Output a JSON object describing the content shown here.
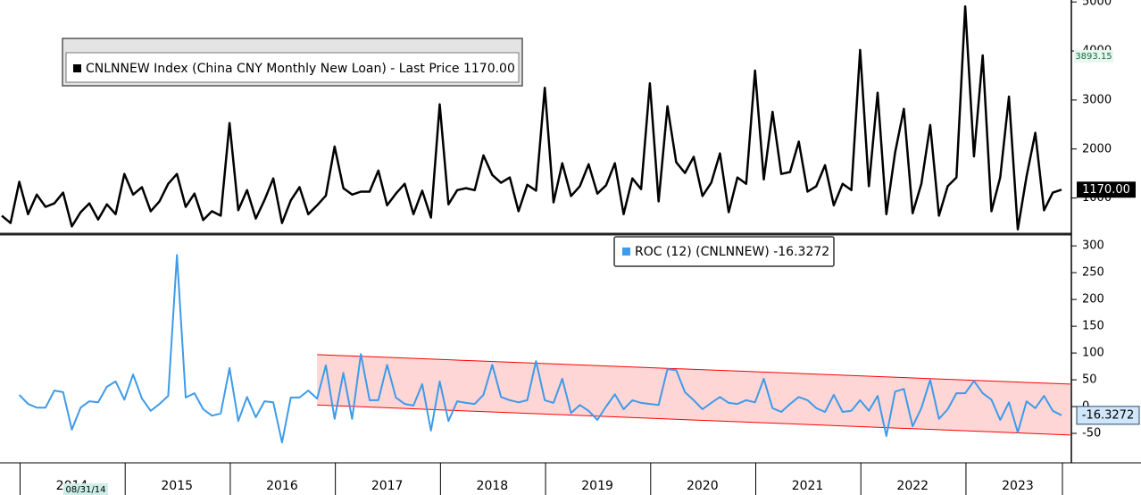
{
  "chart_data": [
    {
      "type": "line",
      "series": [
        {
          "name": "CNLNNEW Index (China CNY Monthly New Loan) - Last Price 1170.00",
          "color": "#000000",
          "values": [
            640,
            490,
            1330,
            670,
            1070,
            820,
            890,
            1110,
            420,
            710,
            890,
            560,
            870,
            670,
            1490,
            1070,
            1220,
            730,
            930,
            1290,
            1490,
            820,
            1090,
            550,
            730,
            640,
            2530,
            750,
            1160,
            580,
            960,
            1400,
            490,
            950,
            1220,
            670,
            850,
            1050,
            2050,
            1200,
            1070,
            1130,
            1130,
            1560,
            850,
            1090,
            1290,
            670,
            1150,
            600,
            2910,
            870,
            1160,
            1200,
            1160,
            1870,
            1470,
            1310,
            1420,
            730,
            1270,
            1150,
            3250,
            910,
            1710,
            1040,
            1240,
            1690,
            1090,
            1260,
            1710,
            670,
            1400,
            1180,
            3340,
            930,
            2870,
            1730,
            1510,
            1840,
            1040,
            1310,
            1910,
            710,
            1420,
            1290,
            3600,
            1380,
            2760,
            1490,
            1530,
            2150,
            1130,
            1240,
            1670,
            850,
            1290,
            1160,
            4020,
            1240,
            3150,
            670,
            1930,
            2820,
            690,
            1290,
            2490,
            640,
            1240,
            1420,
            4910,
            1850,
            3910,
            730,
            1420,
            3070,
            360,
            1440,
            2330,
            750,
            1110,
            1170
          ]
        }
      ],
      "last_label": "1170.00",
      "annotation": {
        "value": 3893.15,
        "label": "3893.15"
      },
      "ylim": [
        300,
        5040
      ],
      "yticks": [
        1000,
        2000,
        3000,
        4000,
        5000
      ]
    },
    {
      "type": "line",
      "categories": [
        null,
        null,
        null,
        null,
        null,
        null,
        null,
        null,
        "2014",
        null,
        null,
        null,
        null,
        null,
        null,
        null,
        null,
        null,
        null,
        null,
        "2015",
        null,
        null,
        null,
        null,
        null,
        null,
        null,
        null,
        null,
        null,
        null,
        "2016",
        null,
        null,
        null,
        null,
        null,
        null,
        null,
        null,
        null,
        null,
        null,
        "2017",
        null,
        null,
        null,
        null,
        null,
        null,
        null,
        null,
        null,
        null,
        null,
        "2018",
        null,
        null,
        null,
        null,
        null,
        null,
        null,
        null,
        null,
        null,
        null,
        "2019",
        null,
        null,
        null,
        null,
        null,
        null,
        null,
        null,
        null,
        null,
        null,
        "2020",
        null,
        null,
        null,
        null,
        null,
        null,
        null,
        null,
        null,
        null,
        null,
        "2021",
        null,
        null,
        null,
        null,
        null,
        null,
        null,
        null,
        null,
        null,
        null,
        "2022",
        null,
        null,
        null,
        null,
        null,
        null,
        null,
        null,
        null,
        null,
        null,
        "2023",
        null,
        null,
        null,
        null,
        null
      ],
      "series": [
        {
          "name": "ROC (12) (CNLNNEW) -16.3272",
          "color": "#3d9be9",
          "values": [
            null,
            null,
            22,
            5,
            -2,
            -2,
            30,
            27,
            -43,
            -2,
            10,
            8,
            37,
            47,
            13,
            60,
            15,
            -8,
            5,
            20,
            283,
            17,
            25,
            -5,
            -17,
            -13,
            72,
            -27,
            18,
            -20,
            10,
            8,
            -67,
            17,
            17,
            30,
            15,
            77,
            -23,
            63,
            -23,
            98,
            12,
            12,
            78,
            17,
            5,
            2,
            42,
            -45,
            47,
            -27,
            10,
            7,
            5,
            22,
            78,
            18,
            12,
            8,
            12,
            85,
            12,
            7,
            52,
            -12,
            3,
            -8,
            -25,
            0,
            23,
            -5,
            12,
            7,
            5,
            3,
            70,
            68,
            27,
            12,
            -5,
            7,
            18,
            7,
            5,
            12,
            8,
            52,
            -3,
            -10,
            5,
            18,
            12,
            -3,
            -10,
            22,
            -10,
            -8,
            12,
            -8,
            20,
            -55,
            28,
            33,
            -37,
            -3,
            50,
            -23,
            -5,
            25,
            25,
            48,
            25,
            13,
            -25,
            8,
            -48,
            10,
            -3,
            20,
            -8,
            -16.3272
          ]
        }
      ],
      "last_label": "-16.3272",
      "annotations": [
        "08/31/14"
      ],
      "channel": {
        "start": 36,
        "end": 122,
        "upper": [
          97,
          42
        ],
        "lower": [
          3,
          -53
        ],
        "color": "#ff0000"
      },
      "ylim": [
        -105,
        317
      ],
      "yticks": [
        300,
        250,
        200,
        150,
        100,
        50,
        0,
        -50
      ]
    }
  ]
}
